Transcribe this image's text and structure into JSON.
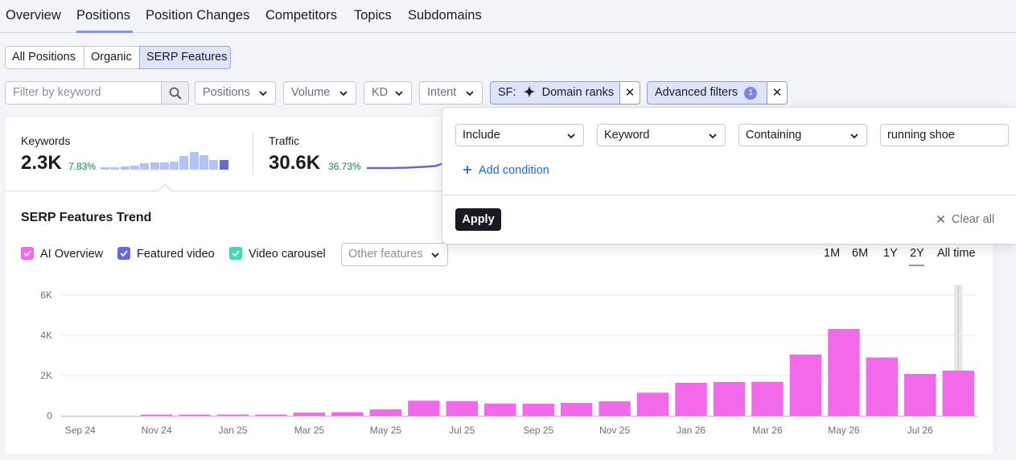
{
  "nav": {
    "tabs": [
      {
        "label": "Overview"
      },
      {
        "label": "Positions"
      },
      {
        "label": "Position Changes"
      },
      {
        "label": "Competitors"
      },
      {
        "label": "Topics"
      },
      {
        "label": "Subdomains"
      }
    ],
    "active": "Positions"
  },
  "segments": [
    {
      "label": "All Positions"
    },
    {
      "label": "Organic"
    },
    {
      "label": "SERP Features"
    }
  ],
  "filters": {
    "keyword_placeholder": "Filter by keyword",
    "dropdowns": [
      "Positions",
      "Volume",
      "KD",
      "Intent"
    ],
    "sf_chip": {
      "prefix": "SF:",
      "label": "Domain ranks"
    },
    "advanced": {
      "label": "Advanced filters",
      "count": "1"
    }
  },
  "metrics": {
    "keywords": {
      "label": "Keywords",
      "value": "2.3K",
      "change": "7.83%",
      "sparkline": [
        2,
        2,
        3,
        4,
        6,
        7,
        7,
        8,
        13,
        17,
        14,
        9,
        9
      ]
    },
    "traffic": {
      "label": "Traffic",
      "value": "30.6K",
      "change": "36.73%"
    }
  },
  "trend": {
    "title": "SERP Features Trend",
    "legend": [
      "AI Overview",
      "Featured video",
      "Video carousel"
    ],
    "other_features": "Other features",
    "periods": [
      "1M",
      "6M",
      "1Y",
      "2Y",
      "All time"
    ],
    "active_period": "2Y"
  },
  "popover": {
    "include": "Include",
    "field": "Keyword",
    "op": "Containing",
    "value": "running shoe",
    "add_condition": "Add condition",
    "apply": "Apply",
    "clear_all": "Clear all"
  },
  "colors": {
    "ai_overview": "#f06ae9",
    "featured_video": "#6468d8",
    "video_carousel": "#3fd8b8",
    "accent": "#8a8fe8"
  },
  "chart_data": {
    "type": "bar",
    "series": [
      {
        "name": "AI Overview",
        "color": "#f06ae9",
        "values": [
          0,
          0,
          50,
          60,
          50,
          40,
          160,
          180,
          320,
          750,
          730,
          610,
          600,
          640,
          720,
          1150,
          1640,
          1680,
          1690,
          3050,
          4320,
          2900,
          2080,
          2250
        ]
      }
    ],
    "ylim": [
      0,
      6000
    ],
    "yticks": [
      {
        "v": 0,
        "label": "0"
      },
      {
        "v": 2000,
        "label": "2K"
      },
      {
        "v": 4000,
        "label": "4K"
      },
      {
        "v": 6000,
        "label": "6K"
      }
    ],
    "xticks": [
      {
        "i": 0.5,
        "label": "Sep 24"
      },
      {
        "i": 2.5,
        "label": "Nov 24"
      },
      {
        "i": 4.5,
        "label": "Jan 25"
      },
      {
        "i": 6.5,
        "label": "Mar 25"
      },
      {
        "i": 8.5,
        "label": "May 25"
      },
      {
        "i": 10.5,
        "label": "Jul 25"
      },
      {
        "i": 12.5,
        "label": "Sep 25"
      },
      {
        "i": 14.5,
        "label": "Nov 25"
      },
      {
        "i": 16.5,
        "label": "Jan 26"
      },
      {
        "i": 18.5,
        "label": "Mar 26"
      },
      {
        "i": 20.5,
        "label": "May 26"
      },
      {
        "i": 22.5,
        "label": "Jul 26"
      }
    ],
    "grid": true,
    "highlight_index": 23
  }
}
